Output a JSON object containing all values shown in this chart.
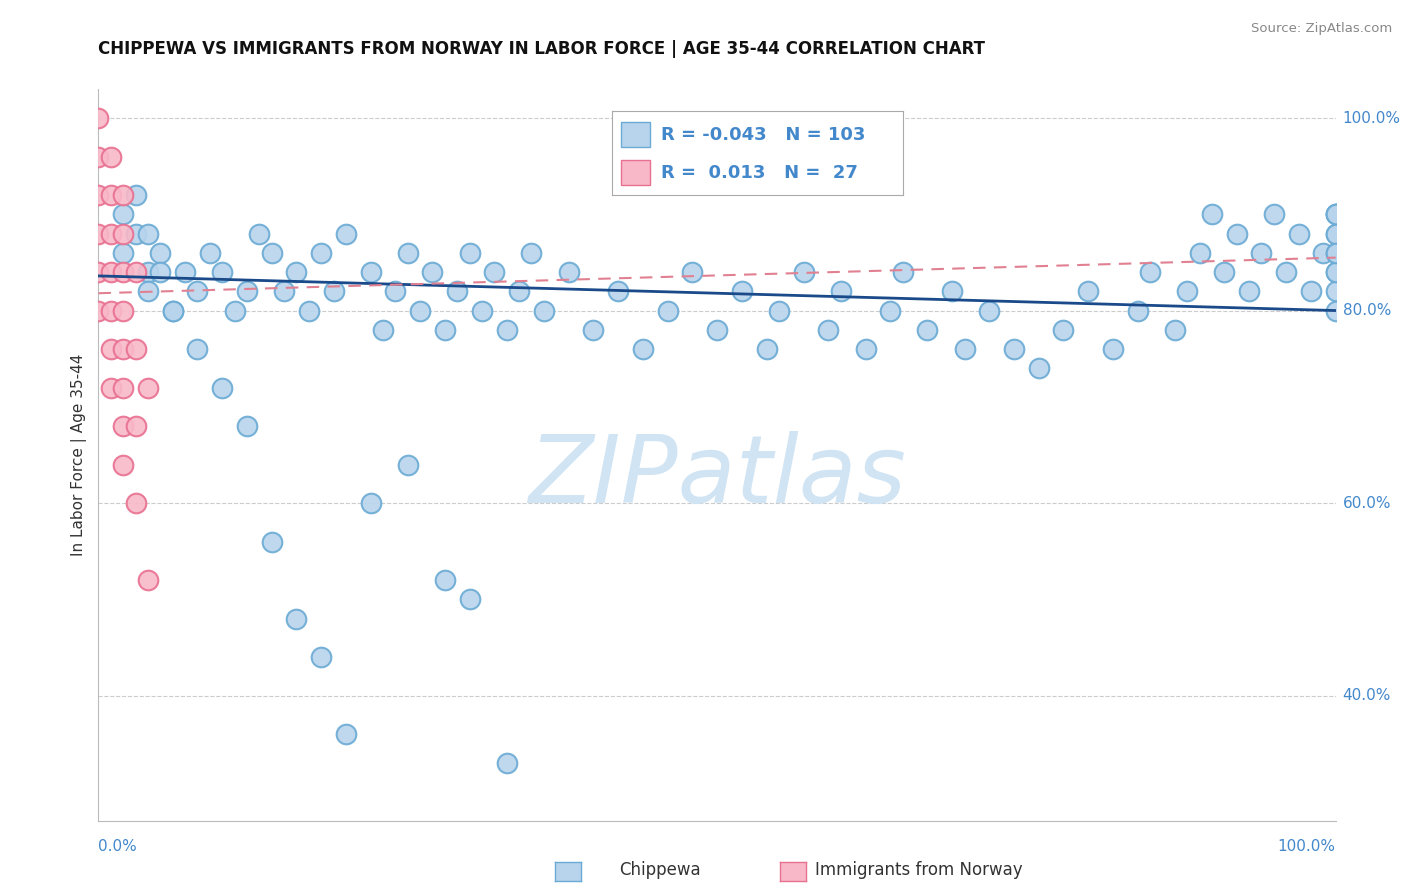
{
  "title": "CHIPPEWA VS IMMIGRANTS FROM NORWAY IN LABOR FORCE | AGE 35-44 CORRELATION CHART",
  "source": "Source: ZipAtlas.com",
  "xlabel_bottom_left": "0.0%",
  "xlabel_bottom_right": "100.0%",
  "ylabel": "In Labor Force | Age 35-44",
  "legend_label1": "Chippewa",
  "legend_label2": "Immigrants from Norway",
  "r1": -0.043,
  "n1": 103,
  "r2": 0.013,
  "n2": 27,
  "color_blue_fill": "#b8d4ec",
  "color_blue_edge": "#6aaad4",
  "color_pink_fill": "#f8b8c8",
  "color_pink_edge": "#e87090",
  "color_trend_blue": "#1a4a8a",
  "color_trend_pink": "#e08090",
  "watermark_text": "ZIPatlas",
  "watermark_color": "#d0e4f4",
  "xlim": [
    0.0,
    1.0
  ],
  "ylim": [
    0.27,
    1.03
  ],
  "ytick_positions": [
    0.4,
    0.6,
    0.8,
    1.0
  ],
  "ytick_labels": [
    "40.0%",
    "60.0%",
    "80.0%",
    "100.0%"
  ],
  "grid_color": "#cccccc",
  "right_label_color": "#4488cc",
  "blue_trend_start_y": 0.836,
  "blue_trend_end_y": 0.8,
  "pink_trend_start_y": 0.818,
  "pink_trend_end_y": 0.855,
  "blue_points_x": [
    0.02,
    0.02,
    0.03,
    0.04,
    0.04,
    0.05,
    0.06,
    0.07,
    0.08,
    0.09,
    0.1,
    0.11,
    0.12,
    0.13,
    0.14,
    0.15,
    0.16,
    0.17,
    0.18,
    0.19,
    0.2,
    0.22,
    0.23,
    0.24,
    0.25,
    0.26,
    0.27,
    0.28,
    0.29,
    0.3,
    0.31,
    0.32,
    0.33,
    0.34,
    0.35,
    0.36,
    0.38,
    0.4,
    0.42,
    0.44,
    0.46,
    0.48,
    0.5,
    0.52,
    0.54,
    0.55,
    0.57,
    0.59,
    0.6,
    0.62,
    0.64,
    0.65,
    0.67,
    0.69,
    0.7,
    0.72,
    0.74,
    0.76,
    0.78,
    0.8,
    0.82,
    0.84,
    0.85,
    0.87,
    0.88,
    0.89,
    0.9,
    0.91,
    0.92,
    0.93,
    0.94,
    0.95,
    0.96,
    0.97,
    0.98,
    0.99,
    1.0,
    1.0,
    1.0,
    1.0,
    1.0,
    1.0,
    1.0,
    1.0,
    1.0,
    1.0,
    1.0,
    0.03,
    0.04,
    0.05,
    0.06,
    0.08,
    0.1,
    0.12,
    0.14,
    0.16,
    0.18,
    0.2,
    0.22,
    0.25,
    0.28,
    0.3,
    0.33
  ],
  "blue_points_y": [
    0.9,
    0.86,
    0.88,
    0.84,
    0.82,
    0.86,
    0.8,
    0.84,
    0.82,
    0.86,
    0.84,
    0.8,
    0.82,
    0.88,
    0.86,
    0.82,
    0.84,
    0.8,
    0.86,
    0.82,
    0.88,
    0.84,
    0.78,
    0.82,
    0.86,
    0.8,
    0.84,
    0.78,
    0.82,
    0.86,
    0.8,
    0.84,
    0.78,
    0.82,
    0.86,
    0.8,
    0.84,
    0.78,
    0.82,
    0.76,
    0.8,
    0.84,
    0.78,
    0.82,
    0.76,
    0.8,
    0.84,
    0.78,
    0.82,
    0.76,
    0.8,
    0.84,
    0.78,
    0.82,
    0.76,
    0.8,
    0.76,
    0.74,
    0.78,
    0.82,
    0.76,
    0.8,
    0.84,
    0.78,
    0.82,
    0.86,
    0.9,
    0.84,
    0.88,
    0.82,
    0.86,
    0.9,
    0.84,
    0.88,
    0.82,
    0.86,
    0.9,
    0.84,
    0.88,
    0.82,
    0.86,
    0.9,
    0.84,
    0.88,
    0.8,
    0.86,
    0.9,
    0.92,
    0.88,
    0.84,
    0.8,
    0.76,
    0.72,
    0.68,
    0.56,
    0.48,
    0.44,
    0.36,
    0.6,
    0.64,
    0.52,
    0.5,
    0.33
  ],
  "pink_points_x": [
    0.0,
    0.0,
    0.0,
    0.0,
    0.0,
    0.0,
    0.01,
    0.01,
    0.01,
    0.01,
    0.01,
    0.01,
    0.01,
    0.02,
    0.02,
    0.02,
    0.02,
    0.02,
    0.02,
    0.02,
    0.02,
    0.03,
    0.03,
    0.03,
    0.03,
    0.04,
    0.04
  ],
  "pink_points_y": [
    1.0,
    0.96,
    0.92,
    0.88,
    0.84,
    0.8,
    0.96,
    0.92,
    0.88,
    0.84,
    0.8,
    0.76,
    0.72,
    0.92,
    0.88,
    0.84,
    0.8,
    0.76,
    0.72,
    0.68,
    0.64,
    0.84,
    0.76,
    0.68,
    0.6,
    0.72,
    0.52
  ]
}
